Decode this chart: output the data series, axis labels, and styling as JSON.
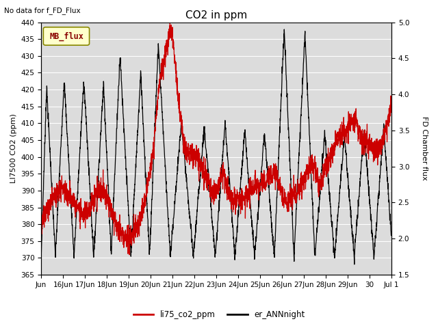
{
  "title": "CO2 in ppm",
  "top_left_text": "No data for f_FD_Flux",
  "ylabel_left": "LI7500 CO2 (ppm)",
  "ylabel_right": "FD Chamber flux",
  "ylim_left": [
    365,
    440
  ],
  "ylim_right": [
    1.5,
    5.0
  ],
  "yticks_left": [
    365,
    370,
    375,
    380,
    385,
    390,
    395,
    400,
    405,
    410,
    415,
    420,
    425,
    430,
    435,
    440
  ],
  "yticks_right": [
    1.5,
    2.0,
    2.5,
    3.0,
    3.5,
    4.0,
    4.5,
    5.0
  ],
  "xtick_labels": [
    "Jun",
    "16Jun",
    "17Jun",
    "18Jun",
    "19Jun",
    "20Jun",
    "21Jun",
    "22Jun",
    "23Jun",
    "24Jun",
    "25Jun",
    "26Jun",
    "27Jun",
    "28Jun",
    "29Jun",
    "30",
    "Jul 1"
  ],
  "line1_color": "#CC0000",
  "line2_color": "#000000",
  "line1_label": "li75_co2_ppm",
  "line2_label": "er_ANNnight",
  "legend_box_color": "#FFFFCC",
  "legend_box_label": "MB_flux",
  "legend_box_edgecolor": "#888800",
  "bg_color": "#DCDCDC",
  "grid_color": "#FFFFFF",
  "fig_bg_color": "#FFFFFF",
  "figsize": [
    6.4,
    4.8
  ],
  "dpi": 100
}
